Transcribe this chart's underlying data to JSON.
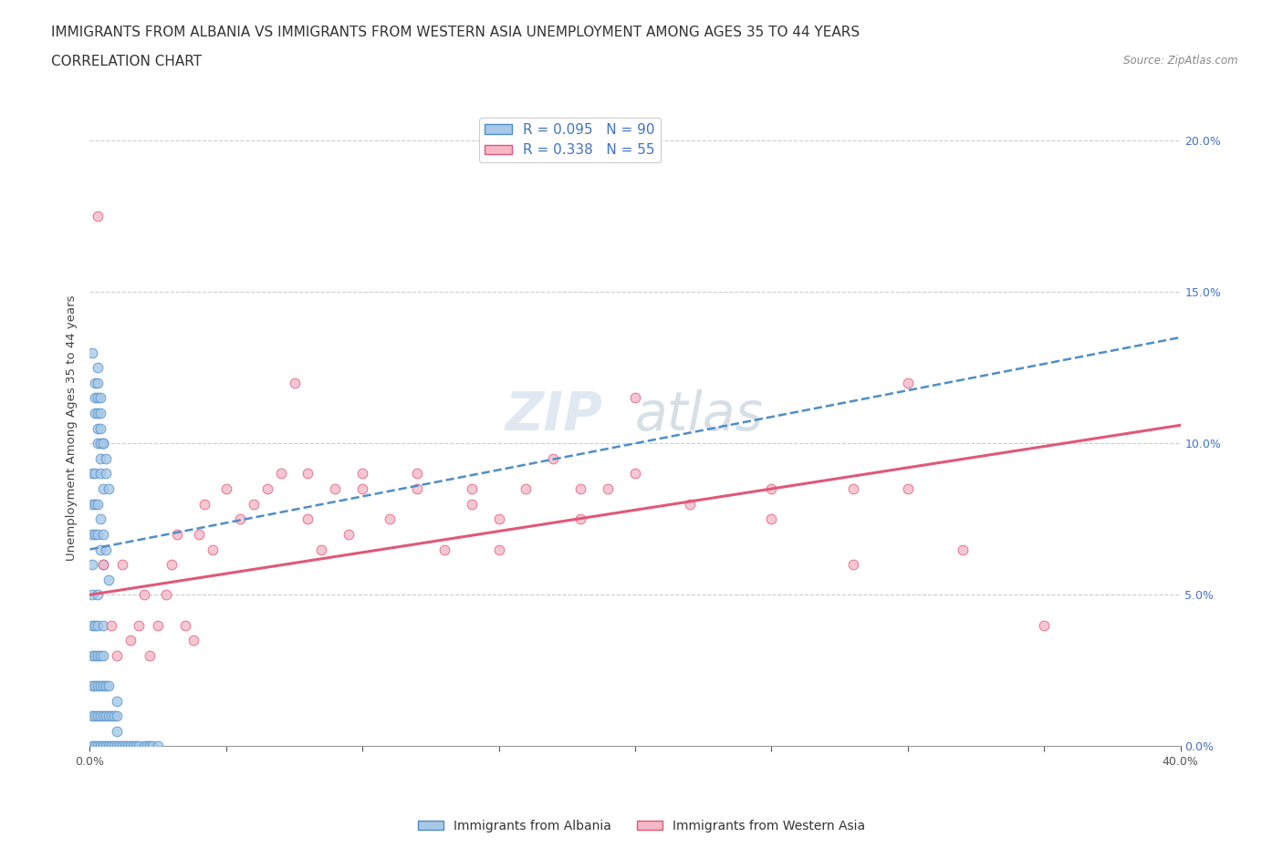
{
  "title_line1": "IMMIGRANTS FROM ALBANIA VS IMMIGRANTS FROM WESTERN ASIA UNEMPLOYMENT AMONG AGES 35 TO 44 YEARS",
  "title_line2": "CORRELATION CHART",
  "source_text": "Source: ZipAtlas.com",
  "ylabel": "Unemployment Among Ages 35 to 44 years",
  "xlim": [
    0.0,
    0.4
  ],
  "ylim": [
    0.0,
    0.21
  ],
  "xtick_positions": [
    0.0,
    0.05,
    0.1,
    0.15,
    0.2,
    0.25,
    0.3,
    0.35,
    0.4
  ],
  "xtick_labels": [
    "0.0%",
    "",
    "",
    "",
    "",
    "",
    "",
    "",
    "40.0%"
  ],
  "ytick_positions": [
    0.0,
    0.05,
    0.1,
    0.15,
    0.2
  ],
  "ytick_labels": [
    "0.0%",
    "5.0%",
    "10.0%",
    "15.0%",
    "20.0%"
  ],
  "albania_color": "#a8c8e8",
  "albania_edge_color": "#4e8ec8",
  "western_asia_color": "#f5b8c8",
  "western_asia_edge_color": "#e05878",
  "R_albania": 0.095,
  "N_albania": 90,
  "R_western_asia": 0.338,
  "N_western_asia": 55,
  "legend_label_albania": "Immigrants from Albania",
  "legend_label_western_asia": "Immigrants from Western Asia",
  "watermark_top": "ZIP",
  "watermark_bottom": "atlas",
  "trendline_albania_x0": 0.0,
  "trendline_albania_y0": 0.065,
  "trendline_albania_x1": 0.4,
  "trendline_albania_y1": 0.135,
  "trendline_wa_x0": 0.0,
  "trendline_wa_y0": 0.05,
  "trendline_wa_x1": 0.4,
  "trendline_wa_y1": 0.106,
  "grid_color": "#cccccc",
  "title_fontsize": 11,
  "axis_label_fontsize": 9.5,
  "tick_fontsize": 9,
  "legend_fontsize": 11,
  "right_tick_color": "#4472c4",
  "albania_x": [
    0.001,
    0.001,
    0.001,
    0.001,
    0.001,
    0.001,
    0.001,
    0.001,
    0.002,
    0.002,
    0.002,
    0.002,
    0.002,
    0.003,
    0.003,
    0.003,
    0.003,
    0.003,
    0.003,
    0.004,
    0.004,
    0.004,
    0.004,
    0.005,
    0.005,
    0.005,
    0.005,
    0.005,
    0.006,
    0.006,
    0.006,
    0.007,
    0.007,
    0.007,
    0.008,
    0.008,
    0.009,
    0.009,
    0.01,
    0.01,
    0.01,
    0.01,
    0.011,
    0.012,
    0.013,
    0.014,
    0.015,
    0.016,
    0.017,
    0.018,
    0.02,
    0.021,
    0.022,
    0.023,
    0.025,
    0.001,
    0.001,
    0.002,
    0.002,
    0.002,
    0.003,
    0.003,
    0.004,
    0.004,
    0.005,
    0.005,
    0.006,
    0.007,
    0.001,
    0.002,
    0.003,
    0.004,
    0.005,
    0.006,
    0.002,
    0.003,
    0.004,
    0.005,
    0.002,
    0.003,
    0.004,
    0.003,
    0.003,
    0.004,
    0.003,
    0.004,
    0.004,
    0.005,
    0.006,
    0.007
  ],
  "albania_y": [
    0.0,
    0.01,
    0.02,
    0.03,
    0.04,
    0.05,
    0.06,
    0.07,
    0.0,
    0.01,
    0.02,
    0.03,
    0.04,
    0.0,
    0.01,
    0.02,
    0.03,
    0.04,
    0.05,
    0.0,
    0.01,
    0.02,
    0.03,
    0.0,
    0.01,
    0.02,
    0.03,
    0.04,
    0.0,
    0.01,
    0.02,
    0.0,
    0.01,
    0.02,
    0.0,
    0.01,
    0.0,
    0.01,
    0.0,
    0.005,
    0.01,
    0.015,
    0.0,
    0.0,
    0.0,
    0.0,
    0.0,
    0.0,
    0.0,
    0.0,
    0.0,
    0.0,
    0.0,
    0.0,
    0.0,
    0.08,
    0.09,
    0.07,
    0.08,
    0.09,
    0.07,
    0.08,
    0.065,
    0.075,
    0.06,
    0.07,
    0.065,
    0.055,
    0.13,
    0.11,
    0.1,
    0.09,
    0.1,
    0.09,
    0.115,
    0.105,
    0.095,
    0.085,
    0.12,
    0.11,
    0.1,
    0.12,
    0.115,
    0.105,
    0.125,
    0.11,
    0.115,
    0.1,
    0.095,
    0.085
  ],
  "wa_x": [
    0.003,
    0.005,
    0.008,
    0.01,
    0.012,
    0.015,
    0.018,
    0.02,
    0.022,
    0.025,
    0.028,
    0.03,
    0.032,
    0.035,
    0.038,
    0.04,
    0.042,
    0.045,
    0.05,
    0.055,
    0.06,
    0.065,
    0.07,
    0.075,
    0.08,
    0.085,
    0.09,
    0.095,
    0.1,
    0.11,
    0.12,
    0.13,
    0.14,
    0.15,
    0.16,
    0.17,
    0.18,
    0.19,
    0.2,
    0.22,
    0.25,
    0.28,
    0.3,
    0.32,
    0.08,
    0.1,
    0.12,
    0.14,
    0.15,
    0.18,
    0.2,
    0.25,
    0.3,
    0.35,
    0.28
  ],
  "wa_y": [
    0.175,
    0.06,
    0.04,
    0.03,
    0.06,
    0.035,
    0.04,
    0.05,
    0.03,
    0.04,
    0.05,
    0.06,
    0.07,
    0.04,
    0.035,
    0.07,
    0.08,
    0.065,
    0.085,
    0.075,
    0.08,
    0.085,
    0.09,
    0.12,
    0.075,
    0.065,
    0.085,
    0.07,
    0.09,
    0.075,
    0.085,
    0.065,
    0.08,
    0.075,
    0.085,
    0.095,
    0.075,
    0.085,
    0.115,
    0.08,
    0.085,
    0.06,
    0.12,
    0.065,
    0.09,
    0.085,
    0.09,
    0.085,
    0.065,
    0.085,
    0.09,
    0.075,
    0.085,
    0.04,
    0.085
  ]
}
